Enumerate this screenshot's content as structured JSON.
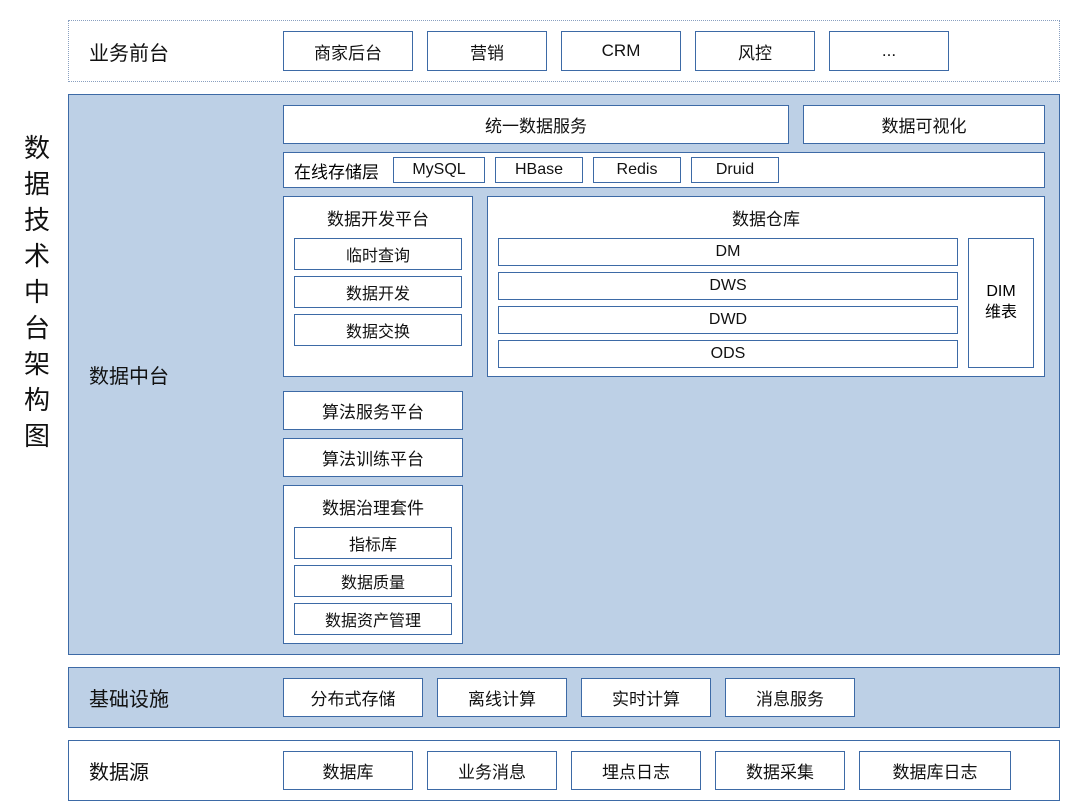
{
  "title": "数据技术中台架构图",
  "colors": {
    "border": "#3d6aa6",
    "fill": "#bdd0e6",
    "dotted": "#8aa0c0",
    "bg": "#ffffff",
    "text": "#111111"
  },
  "layers": {
    "front": {
      "label": "业务前台",
      "items": [
        "商家后台",
        "营销",
        "CRM",
        "风控",
        "..."
      ]
    },
    "mid": {
      "label": "数据中台",
      "top": {
        "unified": "统一数据服务",
        "viz": "数据可视化",
        "algoServe": "算法服务平台"
      },
      "storage": {
        "label": "在线存储层",
        "items": [
          "MySQL",
          "HBase",
          "Redis",
          "Druid"
        ],
        "algoTrain": "算法训练平台"
      },
      "dev": {
        "title": "数据开发平台",
        "items": [
          "临时查询",
          "数据开发",
          "数据交换"
        ]
      },
      "dw": {
        "title": "数据仓库",
        "stack": [
          "DM",
          "DWS",
          "DWD",
          "ODS"
        ],
        "dim": "DIM\n维表"
      },
      "gov": {
        "title": "数据治理套件",
        "items": [
          "指标库",
          "数据质量",
          "数据资产管理"
        ]
      }
    },
    "infra": {
      "label": "基础设施",
      "items": [
        "分布式存储",
        "离线计算",
        "实时计算",
        "消息服务"
      ]
    },
    "source": {
      "label": "数据源",
      "items": [
        "数据库",
        "业务消息",
        "埋点日志",
        "数据采集",
        "数据库日志"
      ]
    }
  }
}
